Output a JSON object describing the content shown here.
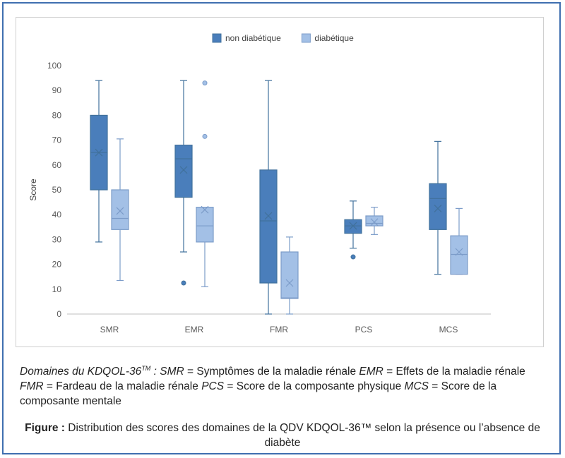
{
  "chart_data": {
    "type": "box",
    "categories": [
      "SMR",
      "EMR",
      "FMR",
      "PCS",
      "MCS"
    ],
    "ylabel": "Score",
    "ylim": [
      0,
      100
    ],
    "yticks": [
      0,
      10,
      20,
      30,
      40,
      50,
      60,
      70,
      80,
      90,
      100
    ],
    "grid": false,
    "legend_position": "top-center",
    "series": [
      {
        "name": "non diabétique",
        "color": "#4a7ebb",
        "boxes": [
          {
            "min": 29,
            "q1": 50,
            "median": 65,
            "q3": 80,
            "max": 94,
            "mean": 65,
            "outliers": []
          },
          {
            "min": 25,
            "q1": 47,
            "median": 62.5,
            "q3": 68,
            "max": 94,
            "mean": 58,
            "outliers": [
              12.5
            ]
          },
          {
            "min": 0,
            "q1": 12.5,
            "median": 37.5,
            "q3": 58,
            "max": 94,
            "mean": 39.5,
            "outliers": []
          },
          {
            "min": 26.5,
            "q1": 32.5,
            "median": 35.5,
            "q3": 38,
            "max": 45.5,
            "mean": 35.5,
            "outliers": [
              23
            ]
          },
          {
            "min": 16,
            "q1": 34,
            "median": 46.5,
            "q3": 52.5,
            "max": 69.5,
            "mean": 42.5,
            "outliers": []
          }
        ]
      },
      {
        "name": "diabétique",
        "color": "#a3c0e6",
        "boxes": [
          {
            "min": 13.5,
            "q1": 34,
            "median": 38.5,
            "q3": 50,
            "max": 70.5,
            "mean": 41.5,
            "outliers": []
          },
          {
            "min": 11,
            "q1": 29,
            "median": 35.5,
            "q3": 43,
            "max": 43,
            "mean": 42,
            "outliers": [
              71.5,
              93
            ]
          },
          {
            "min": 0,
            "q1": 6.25,
            "median": 6.5,
            "q3": 25,
            "max": 31,
            "mean": 12.5,
            "outliers": []
          },
          {
            "min": 32,
            "q1": 35.5,
            "median": 36.5,
            "q3": 39.5,
            "max": 43,
            "mean": 37,
            "outliers": []
          },
          {
            "min": 16,
            "q1": 16,
            "median": 24,
            "q3": 31.5,
            "max": 42.5,
            "mean": 25,
            "outliers": []
          }
        ]
      }
    ]
  },
  "caption": {
    "domains_label": "Domaines du KDQOL-36",
    "tm": "TM",
    "colon": " : ",
    "smr_abbr": "SMR",
    "smr_text": " = Symptômes de la maladie rénale ",
    "emr_abbr": "EMR",
    "emr_text": " = Effets de la maladie rénale",
    "fmr_abbr": "FMR",
    "fmr_text": " = Fardeau de la maladie rénale ",
    "pcs_abbr": "PCS",
    "pcs_text": " = Score de la composante physique ",
    "mcs_abbr": "MCS",
    "mcs_text": " = Score de la composante mentale"
  },
  "figure": {
    "label": "Figure :",
    "text": " Distribution des scores des domaines de la QDV KDQOL-36™ selon la présence ou l’absence de diabète"
  }
}
